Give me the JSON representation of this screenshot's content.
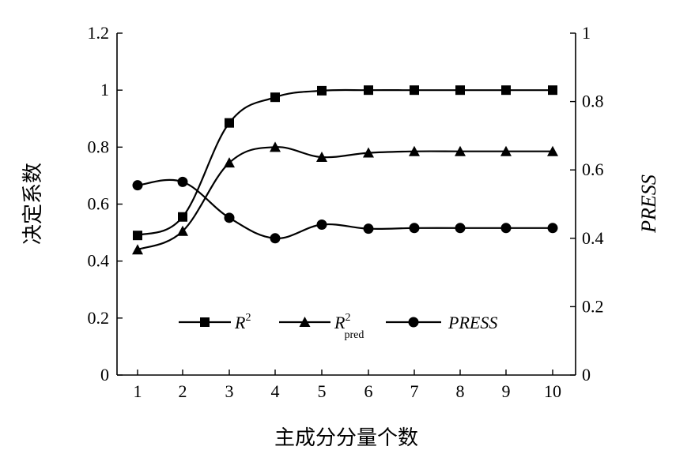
{
  "chart_data": {
    "type": "line",
    "xlabel": "主成分分量个数",
    "ylabel_left": "决定系数",
    "ylabel_right": "PRESS",
    "x": [
      1,
      2,
      3,
      4,
      5,
      6,
      7,
      8,
      9,
      10
    ],
    "x_tick_labels": [
      "1",
      "2",
      "3",
      "4",
      "5",
      "6",
      "7",
      "8",
      "9",
      "10"
    ],
    "ylim_left": [
      0,
      1.2
    ],
    "left_tick_labels": [
      "0",
      "0.2",
      "0.4",
      "0.6",
      "0.8",
      "1",
      "1.2"
    ],
    "ylim_right": [
      0,
      1
    ],
    "right_tick_labels": [
      "0",
      "0.2",
      "0.4",
      "0.6",
      "0.8",
      "1"
    ],
    "grid": false,
    "legend_position": "bottom-center",
    "series": [
      {
        "key": "r2",
        "name": "R²",
        "legend_main": "R",
        "legend_sup": "2",
        "legend_sub": "",
        "axis": "left",
        "marker": "square",
        "values": [
          0.49,
          0.555,
          0.885,
          0.975,
          0.998,
          1.0,
          1.0,
          1.0,
          1.0,
          1.0
        ]
      },
      {
        "key": "r2pred",
        "name": "R²pred",
        "legend_main": "R",
        "legend_sup": "2",
        "legend_sub": "pred",
        "axis": "left",
        "marker": "triangle",
        "values": [
          0.44,
          0.505,
          0.745,
          0.8,
          0.765,
          0.78,
          0.785,
          0.785,
          0.785,
          0.785
        ]
      },
      {
        "key": "press",
        "name": "PRESS",
        "legend_main": "PRESS",
        "legend_sup": "",
        "legend_sub": "",
        "axis": "right",
        "marker": "circle",
        "values": [
          0.555,
          0.565,
          0.46,
          0.4,
          0.44,
          0.428,
          0.43,
          0.43,
          0.43,
          0.43
        ]
      }
    ]
  }
}
